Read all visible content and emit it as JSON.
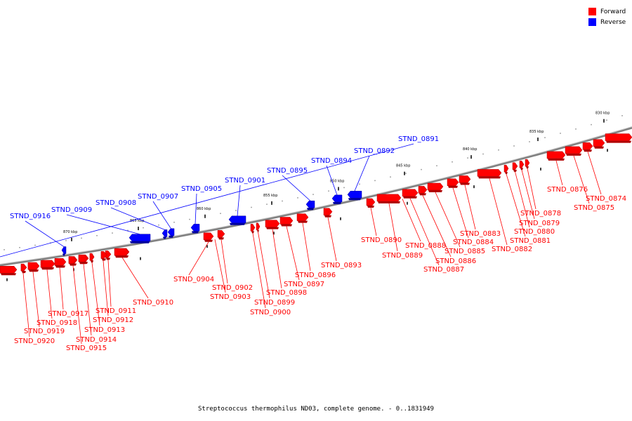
{
  "caption": "Streptococcus thermophilus ND03, complete genome. - 0..1831949",
  "legend": [
    {
      "label": "Forward",
      "color": "#ff0000"
    },
    {
      "label": "Reverse",
      "color": "#0000ff"
    }
  ],
  "colors": {
    "forward": "#ff0000",
    "reverse": "#0000ff",
    "backbone": "#808080"
  },
  "scale_labels": [
    "870 kbp",
    "865 kbp",
    "860 kbp",
    "855 kbp",
    "850 kbp",
    "845 kbp",
    "840 kbp",
    "835 kbp",
    "830 kbp"
  ],
  "genes": [
    {
      "id": "STND_0916",
      "strand": "reverse"
    },
    {
      "id": "STND_0909",
      "strand": "reverse"
    },
    {
      "id": "STND_0908",
      "strand": "reverse"
    },
    {
      "id": "STND_0907",
      "strand": "reverse"
    },
    {
      "id": "STND_0905",
      "strand": "reverse"
    },
    {
      "id": "STND_0901",
      "strand": "reverse"
    },
    {
      "id": "STND_0895",
      "strand": "reverse"
    },
    {
      "id": "STND_0894",
      "strand": "reverse"
    },
    {
      "id": "STND_0892",
      "strand": "reverse"
    },
    {
      "id": "STND_0891",
      "strand": "reverse"
    },
    {
      "id": "STND_0876",
      "strand": "forward"
    },
    {
      "id": "STND_0874",
      "strand": "forward"
    },
    {
      "id": "STND_0875",
      "strand": "forward"
    },
    {
      "id": "STND_0878",
      "strand": "forward"
    },
    {
      "id": "STND_0879",
      "strand": "forward"
    },
    {
      "id": "STND_0880",
      "strand": "forward"
    },
    {
      "id": "STND_0881",
      "strand": "forward"
    },
    {
      "id": "STND_0882",
      "strand": "forward"
    },
    {
      "id": "STND_0883",
      "strand": "forward"
    },
    {
      "id": "STND_0884",
      "strand": "forward"
    },
    {
      "id": "STND_0885",
      "strand": "forward"
    },
    {
      "id": "STND_0886",
      "strand": "forward"
    },
    {
      "id": "STND_0887",
      "strand": "forward"
    },
    {
      "id": "STND_0888",
      "strand": "forward"
    },
    {
      "id": "STND_0889",
      "strand": "forward"
    },
    {
      "id": "STND_0890",
      "strand": "forward"
    },
    {
      "id": "STND_0893",
      "strand": "forward"
    },
    {
      "id": "STND_0896",
      "strand": "forward"
    },
    {
      "id": "STND_0897",
      "strand": "forward"
    },
    {
      "id": "STND_0898",
      "strand": "forward"
    },
    {
      "id": "STND_0899",
      "strand": "forward"
    },
    {
      "id": "STND_0900",
      "strand": "forward"
    },
    {
      "id": "STND_0902",
      "strand": "forward"
    },
    {
      "id": "STND_0903",
      "strand": "forward"
    },
    {
      "id": "STND_0904",
      "strand": "forward"
    },
    {
      "id": "STND_0910",
      "strand": "forward"
    },
    {
      "id": "STND_0911",
      "strand": "forward"
    },
    {
      "id": "STND_0912",
      "strand": "forward"
    },
    {
      "id": "STND_0913",
      "strand": "forward"
    },
    {
      "id": "STND_0914",
      "strand": "forward"
    },
    {
      "id": "STND_0915",
      "strand": "forward"
    },
    {
      "id": "STND_0917",
      "strand": "forward"
    },
    {
      "id": "STND_0918",
      "strand": "forward"
    },
    {
      "id": "STND_0919",
      "strand": "forward"
    },
    {
      "id": "STND_0920",
      "strand": "forward"
    }
  ]
}
